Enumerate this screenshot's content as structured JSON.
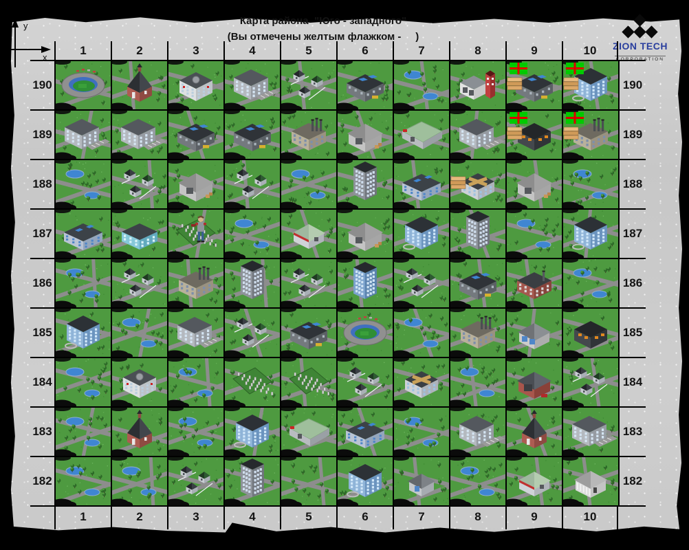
{
  "header": {
    "title": "Карта района  \"Юго - западного\"",
    "subtitle": "(Вы отмечены желтым флажком -     )"
  },
  "axes": {
    "x_label": "x",
    "y_label": "y"
  },
  "logo": {
    "name": "ZION TECH",
    "subtitle": "CORPORATION",
    "color": "#2a3f9e"
  },
  "grid": {
    "columns": [
      "1",
      "2",
      "3",
      "4",
      "5",
      "6",
      "7",
      "8",
      "9",
      "10"
    ],
    "rows": [
      "190",
      "189",
      "188",
      "187",
      "186",
      "185",
      "184",
      "183",
      "182"
    ],
    "cells": [
      [
        "stadium",
        "church",
        "hospital",
        "office",
        "houses",
        "factory",
        "park",
        "fire_station",
        "factory",
        "office_blue"
      ],
      [
        "office",
        "office",
        "factory",
        "factory",
        "factory_tan",
        "warehouse",
        "supermarket",
        "office",
        "club",
        "factory_tan"
      ],
      [
        "park",
        "houses",
        "warehouse",
        "houses",
        "park",
        "tower",
        "mall",
        "casino",
        "warehouse",
        "park"
      ],
      [
        "mall",
        "mall_cyan",
        "cemetery",
        "park",
        "shop_red",
        "warehouse",
        "office_blue",
        "tower",
        "park",
        "office_blue"
      ],
      [
        "park",
        "houses",
        "factory_tan",
        "tower",
        "houses",
        "tower_blue",
        "houses",
        "factory",
        "factory_red",
        "park"
      ],
      [
        "office_blue",
        "park",
        "office",
        "houses",
        "factory",
        "stadium",
        "park",
        "factory_tan",
        "garage",
        "club"
      ],
      [
        "park",
        "hospital",
        "park",
        "cemetery",
        "cemetery",
        "houses",
        "casino",
        "park",
        "firehouse",
        "houses"
      ],
      [
        "park",
        "church",
        "park",
        "office_blue",
        "supermarket",
        "mall",
        "park",
        "office",
        "church",
        "office"
      ],
      [
        "park",
        "park",
        "houses",
        "tower",
        "trees",
        "office_blue",
        "dome",
        "park",
        "shop_red",
        "museum"
      ]
    ],
    "markers": [
      [
        9,
        190
      ],
      [
        10,
        190
      ],
      [
        9,
        189
      ],
      [
        10,
        189
      ]
    ],
    "lumber": [
      [
        9,
        190
      ],
      [
        10,
        190
      ],
      [
        9,
        189
      ],
      [
        10,
        189
      ],
      [
        8,
        188
      ]
    ],
    "player": [
      3,
      187
    ]
  },
  "palette": {
    "paper": "#cccccc",
    "grass": "#4e9a40",
    "grass_light": "#63ae53",
    "grass_dark": "#3e8a33",
    "road": "#8d8d8d",
    "tree": "#2d6a28",
    "tree_light": "#4e9a41",
    "water": "#3f86d2",
    "water_edge": "#8fb0cc",
    "line": "#000000",
    "marker_green": "#00ca00",
    "marker_cross": "#dd0000",
    "lumber": "#d8a060",
    "shadow_blob": "#0b0b0b",
    "logo_blue": "#2a3f9e"
  }
}
